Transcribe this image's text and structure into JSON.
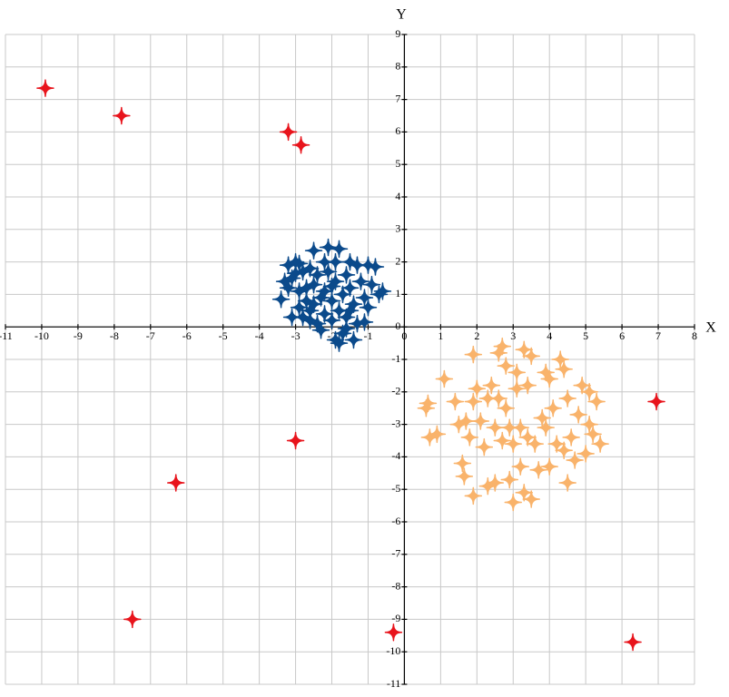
{
  "chart_data": {
    "type": "scatter",
    "xlabel": "X",
    "ylabel": "Y",
    "xlim": [
      -11,
      8
    ],
    "ylim": [
      -11,
      9
    ],
    "xticks": [
      -11,
      -10,
      -9,
      -8,
      -7,
      -6,
      -5,
      -4,
      -3,
      -2,
      -1,
      0,
      1,
      2,
      3,
      4,
      5,
      6,
      7,
      8
    ],
    "yticks": [
      -11,
      -10,
      -9,
      -8,
      -7,
      -6,
      -5,
      -4,
      -3,
      -2,
      -1,
      0,
      1,
      2,
      3,
      4,
      5,
      6,
      7,
      8,
      9
    ],
    "grid": true,
    "series": [
      {
        "color": "#0b4a8b",
        "x": [
          -3.4,
          -3.2,
          -3.1,
          -3.2,
          -3,
          -2.9,
          -2.9,
          -2.8,
          -2.8,
          -2.7,
          -2.6,
          -2.6,
          -2.5,
          -2.5,
          -2.4,
          -2.4,
          -2.3,
          -2.2,
          -2.2,
          -2.1,
          -2.1,
          -2,
          -2,
          -1.9,
          -1.9,
          -1.8,
          -1.8,
          -1.8,
          -1.7,
          -1.7,
          -1.6,
          -1.6,
          -1.5,
          -1.5,
          -1.4,
          -1.4,
          -1.3,
          -1.3,
          -1.2,
          -1.1,
          -1,
          -1,
          -0.9,
          -0.8,
          -0.7,
          -0.6,
          -3.1,
          -2.7,
          -2.3,
          -1.9,
          -2.6,
          -3,
          -2,
          -1.5,
          -1.1,
          -2.9,
          -2.2,
          -1.6,
          -2.5,
          -3.3
        ],
        "y": [
          0.85,
          1.9,
          1.5,
          1.2,
          2,
          0.6,
          1.1,
          0.3,
          1.7,
          0.8,
          0.5,
          1.8,
          2.35,
          1.3,
          0.1,
          1.6,
          0.9,
          0.4,
          1.1,
          2.45,
          1.7,
          0.2,
          0.8,
          1.4,
          2,
          -0.5,
          0.5,
          2.4,
          1,
          -0.2,
          1.6,
          0.3,
          2,
          1.2,
          0.7,
          -0.4,
          1.9,
          0.1,
          1.4,
          0.9,
          1.9,
          0.6,
          1.3,
          1.85,
          1,
          1.1,
          0.3,
          1.2,
          -0.1,
          -0.4,
          0.2,
          1.65,
          1.25,
          0.5,
          0.15,
          1.95,
          2,
          -0.05,
          0.7,
          1.4
        ]
      },
      {
        "color": "#f9b36b",
        "x": [
          0.6,
          0.7,
          0.9,
          0.65,
          1.1,
          1.4,
          1.5,
          1.6,
          1.65,
          1.7,
          1.8,
          1.9,
          1.9,
          1.9,
          2,
          2.1,
          2.2,
          2.3,
          2.3,
          2.4,
          2.5,
          2.5,
          2.6,
          2.6,
          2.7,
          2.7,
          2.8,
          2.8,
          2.9,
          2.9,
          3,
          3,
          3.1,
          3.1,
          3.2,
          3.2,
          3.3,
          3.3,
          3.4,
          3.4,
          3.5,
          3.6,
          3.7,
          3.8,
          3.9,
          3.9,
          4,
          4.1,
          4.2,
          4.3,
          4.4,
          4.4,
          4.5,
          4.5,
          4.6,
          4.7,
          4.8,
          4.9,
          5,
          5.1,
          5.1,
          5.2,
          5.3,
          5.4,
          4,
          3.5
        ],
        "y": [
          -2.5,
          -3.4,
          -3.3,
          -2.35,
          -1.6,
          -2.3,
          -3,
          -4.2,
          -4.6,
          -2.9,
          -3.4,
          -5.2,
          -2.3,
          -0.85,
          -1.9,
          -2.9,
          -3.7,
          -4.9,
          -2.2,
          -1.8,
          -3.1,
          -4.8,
          -0.8,
          -2.2,
          -3.5,
          -0.6,
          -1.2,
          -2.5,
          -3.1,
          -4.7,
          -5.4,
          -3.6,
          -1.9,
          -1.4,
          -4.3,
          -3.1,
          -0.7,
          -5.1,
          -3.4,
          -1.8,
          -5.3,
          -3.6,
          -4.4,
          -2.8,
          -1.4,
          -3.1,
          -4.3,
          -2.5,
          -3.6,
          -1,
          -1.3,
          -3.8,
          -2.2,
          -4.8,
          -3.4,
          -4.1,
          -2.7,
          -1.8,
          -3.9,
          -2,
          -3,
          -3.3,
          -2.3,
          -3.6,
          -1.6,
          -0.9
        ]
      },
      {
        "color": "#e8141c",
        "x": [
          -9.9,
          -7.8,
          -3.2,
          -2.85,
          -3,
          -6.3,
          -7.5,
          -0.3,
          6.3,
          6.95
        ],
        "y": [
          7.35,
          6.5,
          6,
          5.6,
          -3.5,
          -4.8,
          -9,
          -9.4,
          -9.7,
          -2.3
        ]
      }
    ]
  }
}
